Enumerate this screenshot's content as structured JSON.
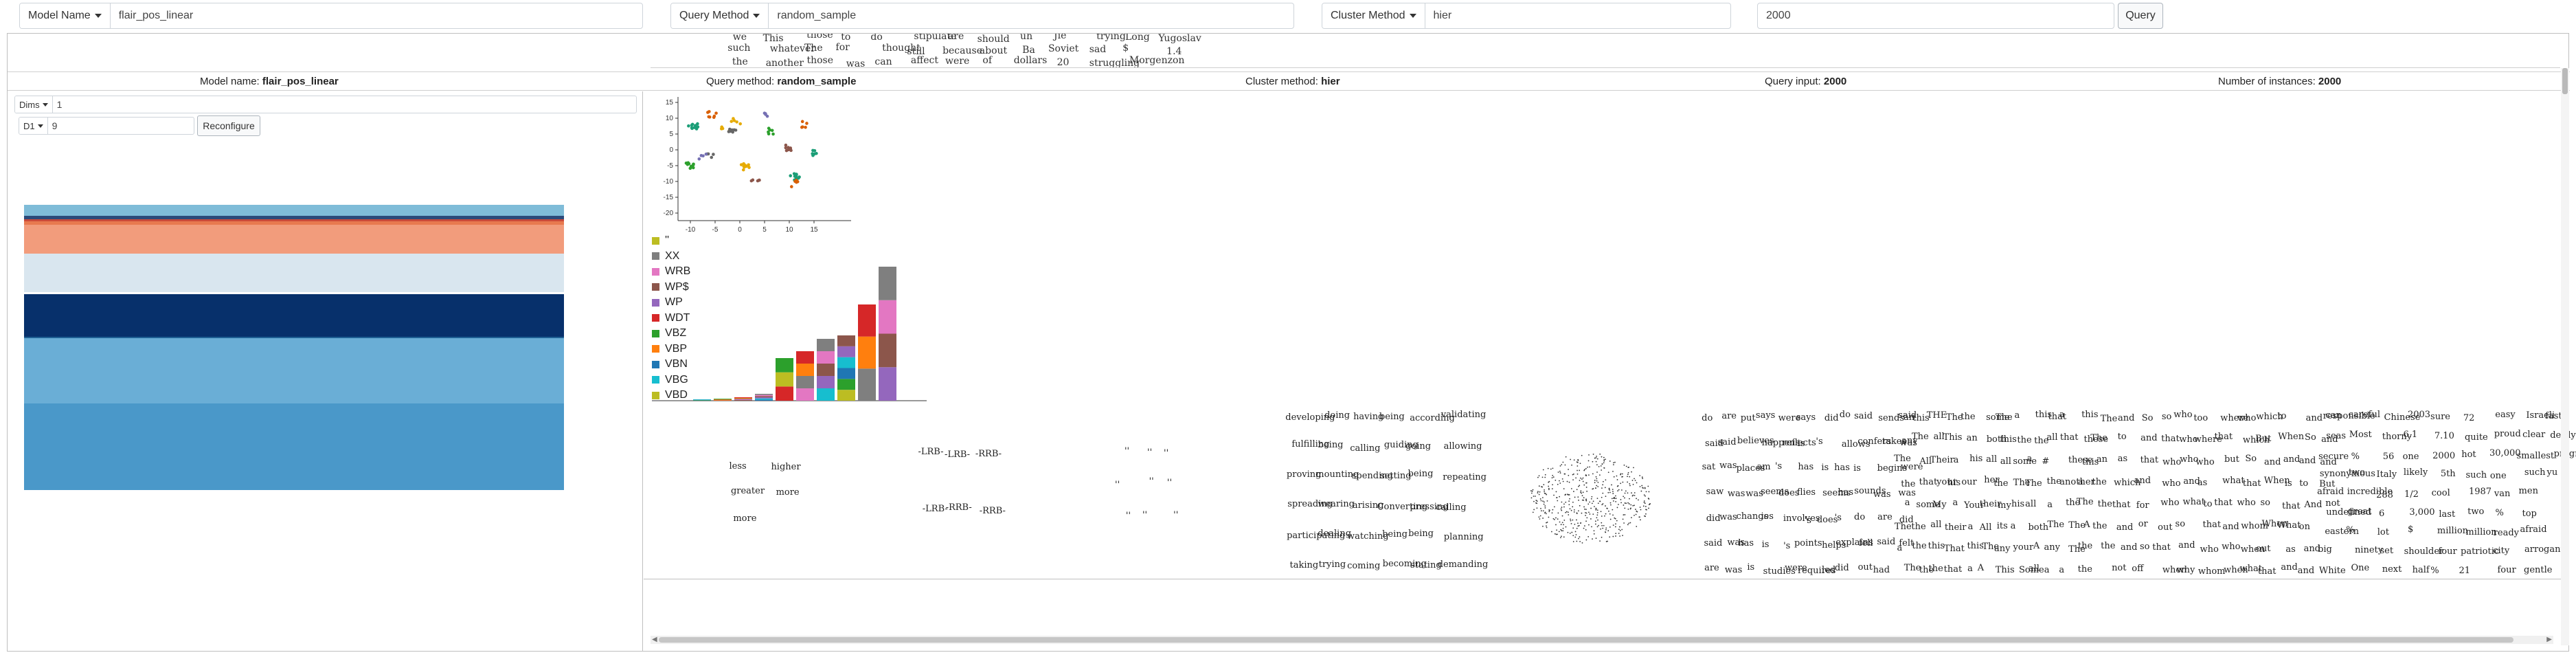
{
  "toolbar": {
    "model_dd_label": "Model Name",
    "model_value": "flair_pos_linear",
    "query_dd_label": "Query Method",
    "query_value": "random_sample",
    "cluster_dd_label": "Cluster Method",
    "cluster_value": "hier",
    "input_value": "2000",
    "query_button": "Query"
  },
  "info": {
    "model_label": "Model name:",
    "model_value": "flair_pos_linear",
    "query_label": "Query method:",
    "query_value": "random_sample",
    "cluster_label": "Cluster method:",
    "cluster_value": "hier",
    "input_label": "Query input:",
    "input_value": "2000",
    "instances_label": "Number of instances:",
    "instances_value": "2000"
  },
  "left_panel": {
    "dims_label": "Dims",
    "dims_value": "1",
    "dim_select_label": "D1",
    "dim_value": "9",
    "reconfigure_label": "Reconfigure",
    "stack_colors": [
      "#7fbcd8",
      "#2b4a7a",
      "#c94a3a",
      "#e8794f",
      "#f29c7c",
      "#d9e6ef",
      "#ffffff",
      "#07306b",
      "#1e5f93",
      "#6aaed6",
      "#4a98c9"
    ]
  },
  "scatter": {
    "x_ticks": [
      "-10",
      "-5",
      "0",
      "5",
      "10",
      "15"
    ],
    "y_ticks": [
      "15",
      "10",
      "5",
      "0",
      "-5",
      "-10",
      "-15",
      "-20"
    ]
  },
  "legend": {
    "items": [
      {
        "label": "''",
        "color": "#bcbd22"
      },
      {
        "label": "XX",
        "color": "#7f7f7f"
      },
      {
        "label": "WRB",
        "color": "#e377c2"
      },
      {
        "label": "WP$",
        "color": "#8c564b"
      },
      {
        "label": "WP",
        "color": "#9467bd"
      },
      {
        "label": "WDT",
        "color": "#d62728"
      },
      {
        "label": "VBZ",
        "color": "#2ca02c"
      },
      {
        "label": "VBP",
        "color": "#ff7f0e"
      },
      {
        "label": "VBN",
        "color": "#1f77b4"
      },
      {
        "label": "VBG",
        "color": "#17becf"
      },
      {
        "label": "VBD",
        "color": "#bcbd22"
      }
    ]
  },
  "top_cloud_words": [
    "we",
    "such",
    "the",
    "This",
    "whatever",
    "another",
    "those",
    "The",
    "those",
    "to",
    "for",
    "was",
    "do",
    "thought",
    "can",
    "stipulate",
    "still",
    "affect",
    "are",
    "because",
    "were",
    "should",
    "about",
    "of",
    "uh",
    "Ba",
    "dollars",
    "Jie",
    "Soviet",
    "20",
    "trying",
    "sad",
    "struggling",
    "Long",
    "$",
    "Morgenzon",
    "Yugoslav",
    "1.4"
  ],
  "clouds": {
    "c1": [
      "less",
      "greater",
      "more",
      "higher",
      "more"
    ],
    "c2": [
      "-LRB-",
      "-LRB-",
      "-LRB-",
      "-RRB-",
      "-RRB-",
      "-RRB-"
    ],
    "c3": [
      "''",
      "''",
      "''",
      "''",
      "''",
      "''",
      "''",
      "''",
      "''"
    ],
    "c4": [
      "developing",
      "fulfilling",
      "proving",
      "spreading",
      "participating",
      "taking",
      "doing",
      "being",
      "mounting",
      "wearing",
      "dealing",
      "trying",
      "having",
      "calling",
      "spending",
      "arising",
      "watching",
      "coming",
      "being",
      "guiding",
      "setting",
      "Converting",
      "being",
      "becoming",
      "according",
      "going",
      "being",
      "pressing",
      "being",
      "stating",
      "validating",
      "allowing",
      "repeating",
      "calling",
      "planning",
      "demanding"
    ],
    "c6": [
      "do",
      "said",
      "sat",
      "saw",
      "did",
      "said",
      "are",
      "are",
      "said",
      "was",
      "was",
      "was",
      "was",
      "was",
      "put",
      "believes",
      "places",
      "was",
      "changes",
      "has",
      "is",
      "says",
      "happens",
      "am",
      "seems",
      "is",
      "is",
      "studies",
      "were",
      "reflects",
      "'s",
      "does",
      "involves",
      "'s",
      "were",
      "says",
      "is",
      "has",
      "flies",
      "'s",
      "points",
      "requires",
      "did",
      "'s",
      "is",
      "seems",
      "does",
      "helps",
      "led",
      "do",
      "allows",
      "has",
      "has",
      "'s",
      "explains",
      "did",
      "said",
      "confers",
      "is",
      "sounds",
      "do",
      "fell",
      "out",
      "sends",
      "takes",
      "begins",
      "was",
      "are",
      "said",
      "had",
      "said",
      "was",
      "were",
      "was",
      "did",
      "felt"
    ],
    "c7": [
      "an",
      "any",
      "The",
      "the",
      "a",
      "The",
      "a",
      "The",
      "this",
      "The",
      "All",
      "that",
      "some",
      "the",
      "the",
      "the",
      "THE",
      "all",
      "Their",
      "your",
      "My",
      "all",
      "this",
      "the",
      "The",
      "This",
      "a",
      "his",
      "a",
      "their",
      "That",
      "that",
      "the",
      "an",
      "his",
      "our",
      "Your",
      "a",
      "this",
      "a",
      "some",
      "both",
      "all",
      "her",
      "their",
      "All",
      "The",
      "A",
      "The",
      "this",
      "all",
      "the",
      "my",
      "its",
      "any",
      "This",
      "a",
      "the",
      "some",
      "The",
      "his",
      "a",
      "your",
      "Some",
      "this",
      "the",
      "a",
      "The",
      "all",
      "both",
      "A",
      "all",
      "that",
      "all",
      "#",
      "the",
      "a",
      "The",
      "any",
      "a",
      "a",
      "that",
      "these",
      "another",
      "the",
      "The",
      "The",
      "a",
      "this",
      "these",
      "this",
      "a",
      "The",
      "A",
      "the",
      "the",
      "The",
      "The",
      "an",
      "the",
      "the",
      "the",
      "the"
    ],
    "c8": [
      "and",
      "to",
      "as",
      "which",
      "that",
      "and",
      "and",
      "not",
      "So",
      "and",
      "that",
      "and",
      "for",
      "or",
      "so",
      "off",
      "so",
      "that",
      "who",
      "who",
      "who",
      "out",
      "that",
      "when",
      "who",
      "who",
      "who",
      "and",
      "what",
      "so",
      "and",
      "why",
      "too",
      "where",
      "who",
      "as",
      "to",
      "that",
      "who",
      "whom",
      "where",
      "that",
      "but",
      "what",
      "that",
      "and",
      "who",
      "when",
      "who",
      "which",
      "So",
      "that",
      "who",
      "whom",
      "when",
      "what",
      "which",
      "But",
      "and",
      "When",
      "so",
      "When",
      "out",
      "that",
      "to",
      "When",
      "and",
      "is",
      "that",
      "What",
      "as",
      "and",
      "and",
      "So",
      "and",
      "to",
      "And",
      "on",
      "and",
      "and",
      "can",
      "and",
      "and",
      "But",
      "not"
    ],
    "c9": [
      "responsible",
      "seas",
      "secure",
      "synonymous",
      "afraid",
      "undefined",
      "eastern",
      "big",
      "White",
      "careful",
      "Most",
      "%",
      "two",
      "incredible",
      "great",
      "%",
      "ninety",
      "One",
      "Chinese",
      "thorny",
      "56",
      "Italy",
      "288",
      "6",
      "lot",
      "set",
      "next",
      "2003",
      "6.1",
      "one",
      "likely",
      "1/2",
      "3,000",
      "$",
      "shoulder",
      "half",
      "sure",
      "7.10",
      "2000",
      "5th",
      "cool",
      "last",
      "million",
      "four",
      "%",
      "72",
      "quite",
      "hot",
      "such",
      "1987",
      "two",
      "million",
      "patriotic",
      "21",
      "easy",
      "proud",
      "30,000",
      "one",
      "van",
      "%",
      "ready",
      "city",
      "four",
      "Israeli",
      "clear",
      "smallest",
      "such",
      "men",
      "top",
      "afraid",
      "arrogant",
      "gentle",
      "fast",
      "deftly",
      "pregnant",
      "yu"
    ]
  }
}
